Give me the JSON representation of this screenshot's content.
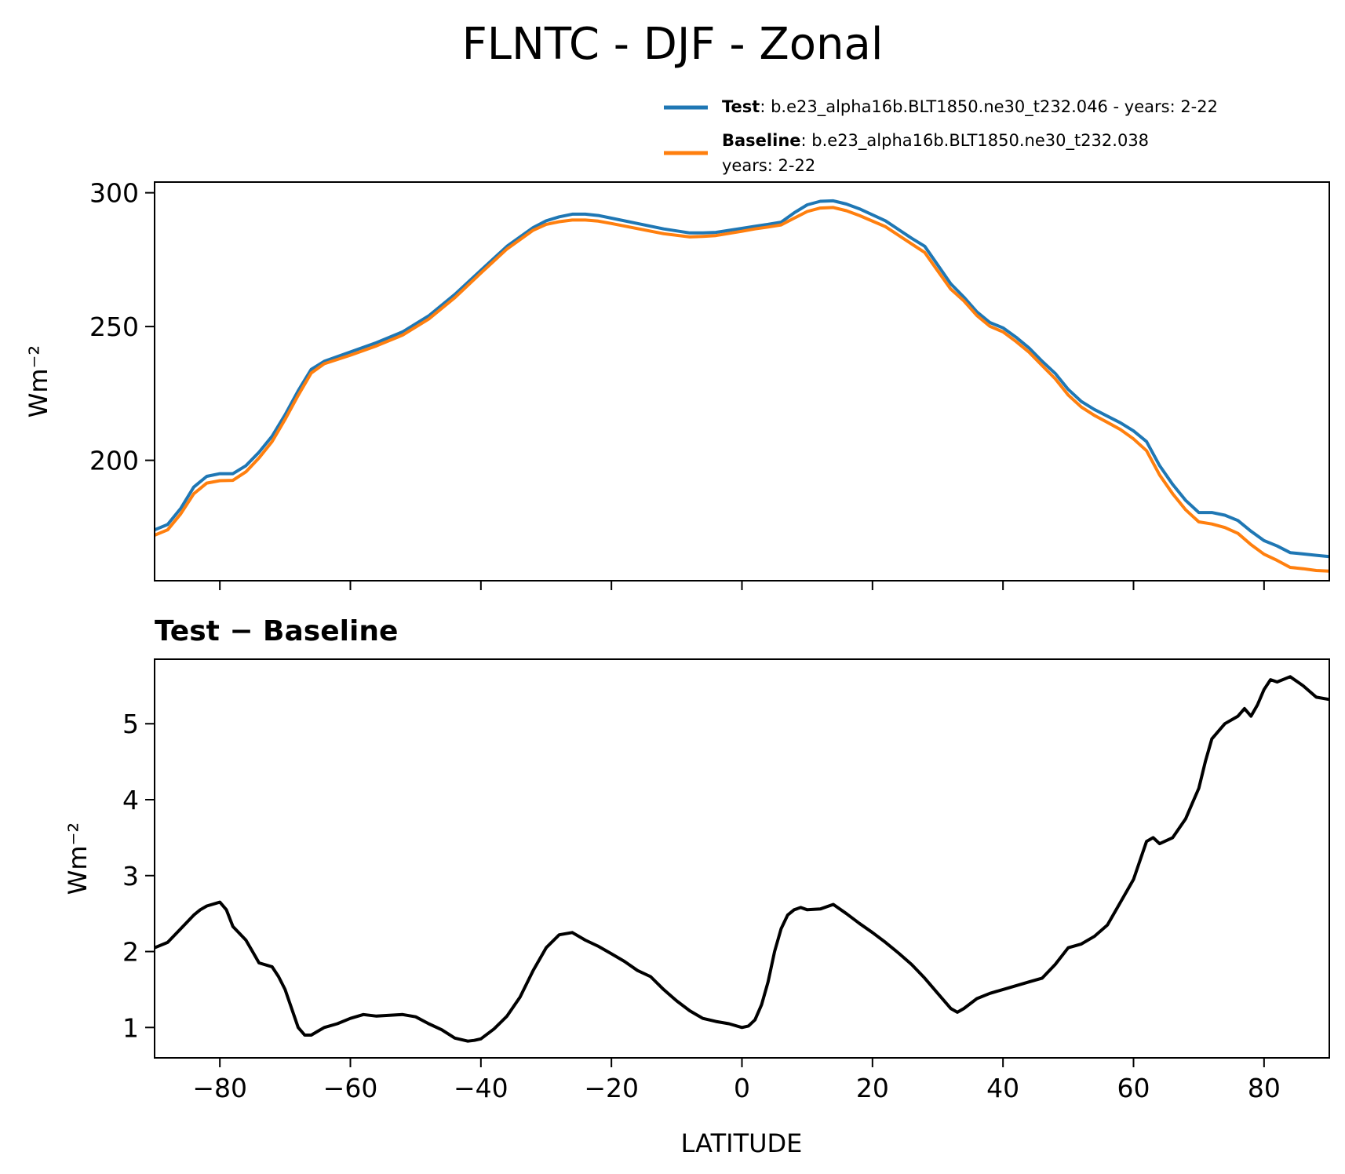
{
  "figure": {
    "title": "FLNTC - DJF - Zonal"
  },
  "legend": {
    "placement": "top-right, above top panel",
    "entries": [
      {
        "key": "Test",
        "text": ": b.e23_alpha16b.BLT1850.ne30_t232.046 - years: 2-22",
        "text2": "",
        "color": "#1f77b4"
      },
      {
        "key": "Baseline",
        "text": ": b.e23_alpha16b.BLT1850.ne30_t232.038",
        "text2": "years: 2-22",
        "color": "#ff7f0e"
      }
    ]
  },
  "chart_data": [
    {
      "type": "line",
      "title": "",
      "xlabel": "",
      "ylabel": "Wm⁻²",
      "xlim": [
        -90,
        90
      ],
      "ylim": [
        155,
        304
      ],
      "xticks": [
        -80,
        -60,
        -40,
        -20,
        0,
        20,
        40,
        60,
        80
      ],
      "yticks": [
        200,
        250,
        300
      ],
      "grid": false,
      "x": [
        -90,
        -88,
        -86,
        -84,
        -82,
        -80,
        -78,
        -76,
        -74,
        -72,
        -70,
        -68,
        -66,
        -64,
        -60,
        -56,
        -52,
        -48,
        -44,
        -40,
        -36,
        -32,
        -30,
        -28,
        -26,
        -24,
        -22,
        -20,
        -16,
        -12,
        -8,
        -6,
        -4,
        0,
        2,
        4,
        6,
        8,
        10,
        12,
        14,
        16,
        18,
        22,
        26,
        28,
        30,
        32,
        34,
        36,
        38,
        40,
        42,
        44,
        46,
        48,
        50,
        52,
        54,
        56,
        58,
        60,
        62,
        64,
        66,
        68,
        70,
        72,
        74,
        76,
        78,
        80,
        82,
        84,
        86,
        88,
        90
      ],
      "series": [
        {
          "name": "Test",
          "color": "#1f77b4",
          "values": [
            174,
            176,
            182,
            190,
            194,
            195,
            195,
            198,
            203,
            209,
            217,
            226,
            234,
            237,
            240.5,
            244,
            248,
            254,
            262,
            271,
            280,
            287,
            289.5,
            291,
            292,
            292,
            291.5,
            290.5,
            288.5,
            286.5,
            285,
            285,
            285.2,
            286.7,
            287.5,
            288.2,
            289,
            292.5,
            295.5,
            296.8,
            297,
            295.8,
            294,
            289.5,
            283,
            280,
            273,
            266,
            261,
            255.5,
            251.5,
            249.5,
            246,
            242,
            237,
            232.5,
            226.5,
            222,
            219,
            216.5,
            214,
            211,
            207,
            198,
            191,
            185,
            180.5,
            180.5,
            179.5,
            177.5,
            173.5,
            170,
            168,
            165.5,
            165,
            164.5,
            164
          ]
        },
        {
          "name": "Baseline",
          "color": "#ff7f0e",
          "values": [
            172,
            174,
            180,
            187.5,
            191.5,
            192.4,
            192.5,
            195.7,
            200.9,
            207,
            215.3,
            224.3,
            232.6,
            236.1,
            239.3,
            242.8,
            246.8,
            252.8,
            260.8,
            270,
            279,
            286,
            288.2,
            289.2,
            289.8,
            289.8,
            289.4,
            288.5,
            286.6,
            284.7,
            283.5,
            283.7,
            284,
            285.6,
            286.5,
            287.2,
            288,
            290.5,
            293,
            294.3,
            294.5,
            293.3,
            291.5,
            287.3,
            280.9,
            277.7,
            270.8,
            264,
            259.6,
            254.1,
            250.1,
            248,
            244.4,
            240.4,
            235.4,
            230.5,
            224.4,
            219.9,
            216.8,
            214.2,
            211.5,
            208,
            203.6,
            194.5,
            187.5,
            181.5,
            177,
            176.2,
            174.9,
            172.7,
            168.5,
            164.9,
            162.6,
            160,
            159.5,
            158.8,
            158.6
          ]
        }
      ]
    },
    {
      "type": "line",
      "title": "Test − Baseline",
      "xlabel": "LATITUDE",
      "ylabel": "Wm⁻²",
      "xlim": [
        -90,
        90
      ],
      "ylim": [
        0.6,
        5.85
      ],
      "xticks": [
        -80,
        -60,
        -40,
        -20,
        0,
        20,
        40,
        60,
        80
      ],
      "yticks": [
        1,
        2,
        3,
        4,
        5
      ],
      "grid": false,
      "x": [
        -90,
        -88,
        -86,
        -84,
        -83,
        -82,
        -80,
        -79,
        -78,
        -76,
        -75,
        -74,
        -72,
        -71,
        -70,
        -68,
        -67,
        -66,
        -65,
        -64,
        -62,
        -60,
        -58,
        -56,
        -54,
        -52,
        -50,
        -48,
        -46,
        -44,
        -42,
        -41,
        -40,
        -38,
        -36,
        -34,
        -32,
        -30,
        -28,
        -26,
        -24,
        -22,
        -20,
        -18,
        -16,
        -14,
        -12,
        -10,
        -8,
        -6,
        -4,
        -2,
        0,
        1,
        2,
        3,
        4,
        5,
        6,
        7,
        8,
        9,
        10,
        12,
        14,
        16,
        18,
        20,
        22,
        24,
        26,
        28,
        30,
        32,
        33,
        34,
        36,
        38,
        40,
        42,
        44,
        46,
        48,
        50,
        52,
        54,
        56,
        58,
        60,
        61,
        62,
        63,
        64,
        66,
        68,
        69,
        70,
        71,
        72,
        74,
        76,
        77,
        78,
        79,
        80,
        81,
        82,
        84,
        86,
        88,
        90
      ],
      "series": [
        {
          "name": "Test − Baseline",
          "color": "#000000",
          "values": [
            2.05,
            2.12,
            2.3,
            2.48,
            2.55,
            2.6,
            2.65,
            2.55,
            2.33,
            2.15,
            2.0,
            1.85,
            1.8,
            1.67,
            1.5,
            1.0,
            0.9,
            0.9,
            0.95,
            1.0,
            1.05,
            1.12,
            1.17,
            1.15,
            1.16,
            1.17,
            1.14,
            1.05,
            0.97,
            0.86,
            0.82,
            0.83,
            0.85,
            0.98,
            1.15,
            1.4,
            1.75,
            2.05,
            2.22,
            2.25,
            2.15,
            2.07,
            1.97,
            1.87,
            1.75,
            1.67,
            1.5,
            1.35,
            1.22,
            1.12,
            1.08,
            1.05,
            1.0,
            1.02,
            1.1,
            1.3,
            1.6,
            2.0,
            2.3,
            2.48,
            2.55,
            2.58,
            2.55,
            2.56,
            2.62,
            2.5,
            2.37,
            2.25,
            2.12,
            1.98,
            1.83,
            1.65,
            1.45,
            1.25,
            1.2,
            1.25,
            1.38,
            1.45,
            1.5,
            1.55,
            1.6,
            1.65,
            1.83,
            2.05,
            2.1,
            2.2,
            2.35,
            2.65,
            2.95,
            3.2,
            3.45,
            3.5,
            3.42,
            3.5,
            3.75,
            3.95,
            4.15,
            4.5,
            4.8,
            5.0,
            5.1,
            5.2,
            5.1,
            5.25,
            5.45,
            5.58,
            5.55,
            5.62,
            5.5,
            5.35,
            5.32
          ]
        }
      ]
    }
  ]
}
